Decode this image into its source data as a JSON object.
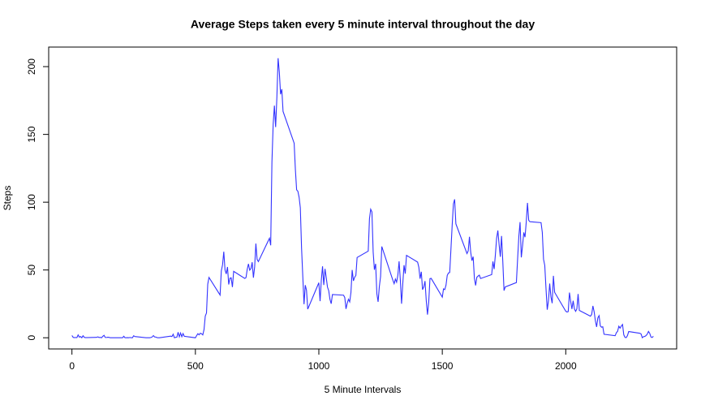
{
  "chart_data": {
    "type": "line",
    "title": "Average Steps taken every 5 minute interval throughout the day",
    "x_label": "5 Minute Intervals",
    "y_label": "Steps",
    "xlim": [
      -94.2,
      2449.2
    ],
    "ylim": [
      -8.25,
      214.42
    ],
    "xticks": [
      0,
      500,
      1000,
      1500,
      2000
    ],
    "yticks": [
      0,
      50,
      100,
      150,
      200
    ],
    "series": [
      {
        "name": "Average Steps",
        "color": "#3333ff",
        "x": [
          0,
          5,
          10,
          15,
          20,
          25,
          30,
          35,
          40,
          45,
          50,
          55,
          100,
          105,
          110,
          115,
          120,
          125,
          130,
          135,
          140,
          145,
          150,
          155,
          200,
          205,
          210,
          215,
          220,
          225,
          230,
          235,
          240,
          245,
          250,
          255,
          300,
          305,
          310,
          315,
          320,
          325,
          330,
          335,
          340,
          345,
          350,
          355,
          400,
          405,
          410,
          415,
          420,
          425,
          430,
          435,
          440,
          445,
          450,
          455,
          500,
          505,
          510,
          515,
          520,
          525,
          530,
          535,
          540,
          545,
          550,
          555,
          600,
          605,
          610,
          615,
          620,
          625,
          630,
          635,
          640,
          645,
          650,
          655,
          700,
          705,
          710,
          715,
          720,
          725,
          730,
          735,
          740,
          745,
          750,
          755,
          800,
          805,
          810,
          815,
          820,
          825,
          830,
          835,
          840,
          845,
          850,
          855,
          900,
          905,
          910,
          915,
          920,
          925,
          930,
          935,
          940,
          945,
          950,
          955,
          1000,
          1005,
          1010,
          1015,
          1020,
          1025,
          1030,
          1035,
          1040,
          1045,
          1050,
          1055,
          1100,
          1105,
          1110,
          1115,
          1120,
          1125,
          1130,
          1135,
          1140,
          1145,
          1150,
          1155,
          1200,
          1205,
          1210,
          1215,
          1220,
          1225,
          1230,
          1235,
          1240,
          1245,
          1250,
          1255,
          1300,
          1305,
          1310,
          1315,
          1320,
          1325,
          1330,
          1335,
          1340,
          1345,
          1350,
          1355,
          1400,
          1405,
          1410,
          1415,
          1420,
          1425,
          1430,
          1435,
          1440,
          1445,
          1450,
          1455,
          1500,
          1505,
          1510,
          1515,
          1520,
          1525,
          1530,
          1535,
          1540,
          1545,
          1550,
          1555,
          1600,
          1605,
          1610,
          1615,
          1620,
          1625,
          1630,
          1635,
          1640,
          1645,
          1650,
          1655,
          1700,
          1705,
          1710,
          1715,
          1720,
          1725,
          1730,
          1735,
          1740,
          1745,
          1750,
          1755,
          1800,
          1805,
          1810,
          1815,
          1820,
          1825,
          1830,
          1835,
          1840,
          1845,
          1850,
          1855,
          1900,
          1905,
          1910,
          1915,
          1920,
          1925,
          1930,
          1935,
          1940,
          1945,
          1950,
          1955,
          2000,
          2005,
          2010,
          2015,
          2020,
          2025,
          2030,
          2035,
          2040,
          2045,
          2050,
          2055,
          2100,
          2105,
          2110,
          2115,
          2120,
          2125,
          2130,
          2135,
          2140,
          2145,
          2150,
          2155,
          2200,
          2205,
          2210,
          2215,
          2220,
          2225,
          2230,
          2235,
          2240,
          2245,
          2250,
          2255,
          2300,
          2305,
          2310,
          2315,
          2320,
          2325,
          2330,
          2335,
          2340,
          2345,
          2350,
          2355
        ],
        "values": [
          1.7,
          0.3,
          0.1,
          0.2,
          0.1,
          2.1,
          0.5,
          0.9,
          0,
          1.5,
          0.3,
          0.1,
          0.3,
          0.7,
          0.2,
          0.3,
          0,
          1.1,
          1.8,
          0.2,
          0.2,
          0.4,
          0.3,
          0,
          0,
          0,
          1.1,
          0,
          0,
          0.1,
          0,
          0.2,
          0,
          0,
          1.5,
          0.9,
          0,
          0,
          0,
          0,
          0.2,
          0.6,
          1.6,
          0.6,
          0.5,
          0.1,
          0,
          0,
          1.2,
          0.9,
          2.6,
          0,
          0.3,
          0.4,
          4.1,
          0.7,
          3.5,
          0.8,
          3.1,
          1.1,
          0,
          1.6,
          3.0,
          2.2,
          3.3,
          3.0,
          2.1,
          6.1,
          16.0,
          18.3,
          39.5,
          44.5,
          31.5,
          49.3,
          53.8,
          63.5,
          50,
          47.1,
          52.2,
          39.3,
          44,
          44.2,
          37.4,
          49,
          43.8,
          44.4,
          50.5,
          54.5,
          49.9,
          51,
          55.7,
          44.3,
          52.3,
          69.5,
          57.8,
          56.2,
          73.4,
          68.2,
          129.4,
          157.5,
          171.2,
          155.4,
          177.3,
          206.2,
          195.9,
          179.6,
          183.4,
          167,
          143.5,
          124,
          109.1,
          108.1,
          103.7,
          95.9,
          66.2,
          45.2,
          24.8,
          38.8,
          35,
          21.1,
          40.6,
          27,
          42.4,
          52.7,
          38.9,
          50.8,
          44.3,
          37.4,
          34.7,
          28.3,
          25.1,
          31.9,
          31.4,
          29.7,
          21.3,
          25.5,
          28.4,
          26.5,
          33.4,
          50,
          42,
          44.6,
          46,
          59.2,
          63.9,
          87.7,
          94.8,
          92.8,
          63.4,
          50.2,
          54.5,
          32.4,
          26.5,
          37.7,
          45.1,
          67.3,
          42.3,
          39.9,
          43.3,
          41,
          46.2,
          56.4,
          42.8,
          25.1,
          40,
          53.5,
          47.3,
          60.8,
          55.8,
          52,
          43.6,
          48.7,
          35.5,
          37.5,
          41.8,
          27.5,
          17.1,
          26.1,
          43.6,
          43.8,
          30,
          36.1,
          35.5,
          38.8,
          46,
          47.8,
          48.1,
          65.3,
          82.9,
          98.7,
          102.1,
          84,
          62.1,
          64.1,
          74.5,
          63.2,
          56.9,
          59.8,
          43.9,
          38.6,
          44.7,
          45.5,
          46.2,
          43.7,
          46.6,
          56.3,
          50.7,
          61.2,
          73.4,
          79.1,
          68.9,
          59.7,
          75.1,
          56.5,
          34.8,
          37.5,
          40.7,
          58,
          74.7,
          85.3,
          59.3,
          67.8,
          77.7,
          74.2,
          85.3,
          99.5,
          86.6,
          85.6,
          84.9,
          77.8,
          58,
          53.4,
          36.3,
          20.7,
          27.4,
          40,
          30.2,
          25.5,
          45.7,
          33.5,
          19.6,
          19,
          19.3,
          33.3,
          26.8,
          21.2,
          27.3,
          21.3,
          19.5,
          21.3,
          32.3,
          20.2,
          15.9,
          17.2,
          23.5,
          19.2,
          12.5,
          8,
          14.7,
          16.3,
          8.7,
          7.8,
          8.1,
          2.6,
          1.5,
          3.7,
          4.8,
          8.5,
          7.1,
          8.7,
          9.8,
          2.2,
          0.3,
          0.1,
          1.6,
          4.6,
          3.3,
          2.8,
          0,
          0.8,
          1,
          1.6,
          2.6,
          4.7,
          3.3,
          0.6,
          0.2,
          1.1
        ]
      }
    ]
  }
}
